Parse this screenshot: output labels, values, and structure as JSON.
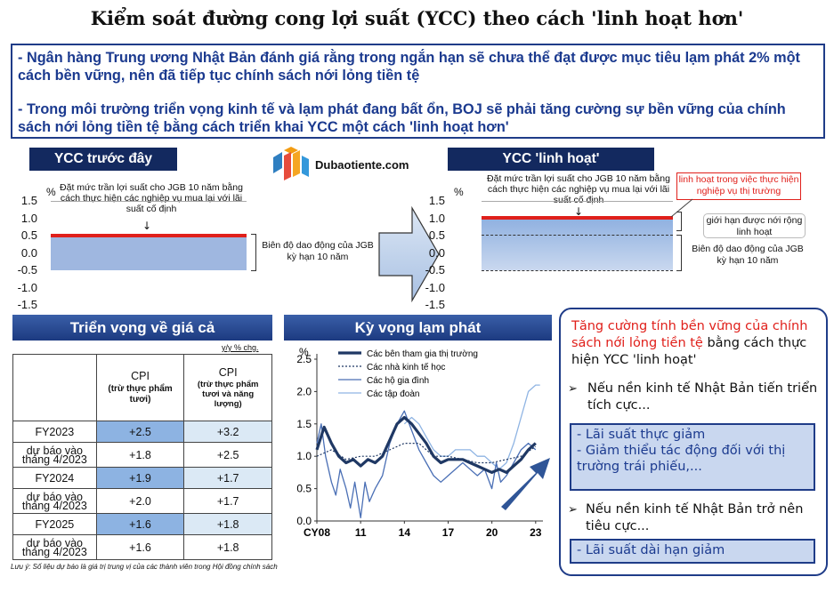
{
  "title": "Kiểm soát đường cong lợi suất (YCC) theo cách 'linh hoạt hơn'",
  "intro": {
    "line1": "- Ngân hàng Trung ương Nhật Bản đánh giá rằng trong ngắn hạn sẽ chưa thể đạt được mục tiêu lạm phát 2% một cách bền vững, nên đã tiếp tục chính sách nới lỏng tiền tệ",
    "line2": "- Trong môi trường triển vọng kinh tế và lạm phát đang bất ổn, BOJ sẽ phải tăng cường sự bền vững của chính sách nới lỏng tiền tệ bằng cách triển khai YCC một cách 'linh hoạt hơn'"
  },
  "logo_text": "Dubaotiente.com",
  "ycc_before": {
    "header": "YCC trước đây",
    "unit": "%",
    "note": "Đặt mức trần lợi suất cho JGB 10 năm bằng cách thực hiện các nghiệp vụ mua lại với lãi suất cố định",
    "band_label": "Biên độ dao động của JGB kỳ hạn 10 năm",
    "yticks": [
      "1.5",
      "1.0",
      "0.5",
      "0.0",
      "-0.5",
      "-1.0",
      "-1.5"
    ],
    "cap": 0.5,
    "band": [
      -0.5,
      0.5
    ]
  },
  "ycc_flex": {
    "header": "YCC 'linh hoạt'",
    "unit": "%",
    "note": "Đặt mức trần lợi suất cho JGB 10 năm bằng cách thực hiện các nghiệp vụ mua lại với lãi suất cố định",
    "red_note": "linh hoạt trong việc thực hiện nghiệp vụ thị trường",
    "limit_label": "giới hạn được nới rộng linh hoạt",
    "band_label": "Biên độ dao động của JGB kỳ hạn 10 năm",
    "yticks": [
      "1.5",
      "1.0",
      "0.5",
      "0.0",
      "-0.5",
      "-1.0",
      "-1.5"
    ],
    "cap": 1.0,
    "band": [
      -0.5,
      0.5
    ]
  },
  "price_outlook": {
    "header": "Triển vọng về giá cả",
    "unit": "y/y % chg.",
    "col1": "CPI",
    "col1_sub": "(trừ thực phẩm tươi)",
    "col2": "CPI",
    "col2_sub": "(trừ thực phẩm tươi và năng lượng)",
    "rows": [
      {
        "label": "FY2023",
        "v1": "+2.5",
        "v2": "+3.2",
        "type": "fy"
      },
      {
        "label": "dự báo vào tháng 4/2023",
        "v1": "+1.8",
        "v2": "+2.5",
        "type": "fc"
      },
      {
        "label": "FY2024",
        "v1": "+1.9",
        "v2": "+1.7",
        "type": "fy"
      },
      {
        "label": "dự báo vào tháng 4/2023",
        "v1": "+2.0",
        "v2": "+1.7",
        "type": "fc"
      },
      {
        "label": "FY2025",
        "v1": "+1.6",
        "v2": "+1.8",
        "type": "fy"
      },
      {
        "label": "dự báo vào tháng 4/2023",
        "v1": "+1.6",
        "v2": "+1.8",
        "type": "fc"
      }
    ],
    "footnote": "Lưu ý: Số liệu dự báo là giá trị trung vị của các thành viên trong Hội đồng chính sách"
  },
  "chart_data": {
    "type": "line",
    "title": "Kỳ vọng lạm phát",
    "ylabel": "%",
    "ylim": [
      0.0,
      2.5
    ],
    "yticks": [
      "0.0",
      "0.5",
      "1.0",
      "1.5",
      "2.0",
      "2.5"
    ],
    "xlim": [
      2008,
      2023.5
    ],
    "xticks": [
      {
        "x": 2008,
        "label": "CY08"
      },
      {
        "x": 2011,
        "label": "11"
      },
      {
        "x": 2014,
        "label": "14"
      },
      {
        "x": 2017,
        "label": "17"
      },
      {
        "x": 2020,
        "label": "20"
      },
      {
        "x": 2023,
        "label": "23"
      }
    ],
    "series": [
      {
        "name": "Các bên tham gia thị trường",
        "color": "#1f3864",
        "style": "thick",
        "x": [
          2008,
          2008.5,
          2009,
          2009.5,
          2010,
          2010.5,
          2011,
          2011.5,
          2012,
          2012.5,
          2013,
          2013.5,
          2014,
          2014.5,
          2015,
          2015.5,
          2016,
          2016.5,
          2017,
          2017.5,
          2018,
          2018.5,
          2019,
          2019.5,
          2020,
          2020.5,
          2021,
          2021.5,
          2022,
          2022.5,
          2023
        ],
        "y": [
          1.1,
          1.45,
          1.2,
          1.0,
          0.9,
          0.95,
          0.85,
          0.95,
          0.9,
          1.0,
          1.25,
          1.5,
          1.6,
          1.5,
          1.35,
          1.2,
          1.0,
          0.9,
          0.95,
          0.95,
          0.95,
          0.9,
          0.85,
          0.8,
          0.75,
          0.8,
          0.75,
          0.85,
          0.95,
          1.1,
          1.2
        ]
      },
      {
        "name": "Các nhà kinh tế học",
        "color": "#1f3864",
        "style": "dotted",
        "x": [
          2008,
          2009,
          2010,
          2011,
          2012,
          2013,
          2014,
          2015,
          2016,
          2017,
          2018,
          2019,
          2020,
          2021,
          2022,
          2023
        ],
        "y": [
          1.0,
          1.1,
          0.95,
          1.0,
          1.0,
          1.1,
          1.2,
          1.2,
          1.0,
          1.0,
          0.95,
          0.9,
          0.9,
          0.95,
          1.0,
          1.15
        ]
      },
      {
        "name": "Các hộ gia đình",
        "color": "#4a6fb5",
        "style": "thin",
        "x": [
          2008,
          2008.3,
          2008.6,
          2009,
          2009.3,
          2009.6,
          2010,
          2010.3,
          2010.6,
          2011,
          2011.3,
          2011.6,
          2012,
          2012.5,
          2013,
          2013.5,
          2014,
          2014.5,
          2015,
          2015.5,
          2016,
          2016.5,
          2017,
          2017.5,
          2018,
          2018.5,
          2019,
          2019.5,
          2020,
          2020.3,
          2020.6,
          2021,
          2021.5,
          2022,
          2022.5,
          2023
        ],
        "y": [
          1.2,
          1.5,
          1.0,
          0.6,
          0.4,
          0.8,
          0.5,
          0.2,
          0.6,
          0.05,
          0.6,
          0.3,
          0.5,
          0.7,
          1.2,
          1.5,
          1.7,
          1.4,
          1.1,
          0.9,
          0.7,
          0.6,
          0.7,
          0.8,
          0.9,
          0.8,
          0.7,
          0.8,
          0.5,
          0.9,
          0.6,
          0.7,
          0.9,
          1.1,
          1.2,
          1.1
        ]
      },
      {
        "name": "Các tập đoàn",
        "color": "#8fb4e3",
        "style": "thin",
        "x": [
          2014,
          2014.5,
          2015,
          2015.5,
          2016,
          2016.5,
          2017,
          2017.5,
          2018,
          2018.5,
          2019,
          2019.5,
          2020,
          2020.5,
          2021,
          2021.5,
          2022,
          2022.5,
          2023,
          2023.3
        ],
        "y": [
          1.5,
          1.6,
          1.5,
          1.3,
          1.1,
          1.0,
          1.0,
          1.1,
          1.1,
          1.1,
          1.0,
          1.0,
          0.9,
          0.8,
          0.9,
          1.2,
          1.6,
          2.0,
          2.1,
          2.1
        ]
      }
    ]
  },
  "policy_panel": {
    "heading_red": "Tăng cường tính bền vững của chính sách nới lỏng tiền tệ",
    "heading_rest": "bằng cách thực hiện YCC 'linh hoạt'",
    "case1": "Nếu nền kinh tế Nhật Bản tiến triển tích cực...",
    "case1_box1": "- Lãi suất thực giảm",
    "case1_box2": "- Giảm thiểu tác động đối với thị trường trái phiếu,...",
    "case2": "Nếu nền kinh tế Nhật Bản trở nên tiêu cực...",
    "case2_box": "- Lãi suất dài hạn giảm"
  },
  "colors": {
    "navy": "#13295f",
    "red": "#e0201b",
    "band": "#9fb7e0",
    "accent": "#1b3a8f"
  }
}
